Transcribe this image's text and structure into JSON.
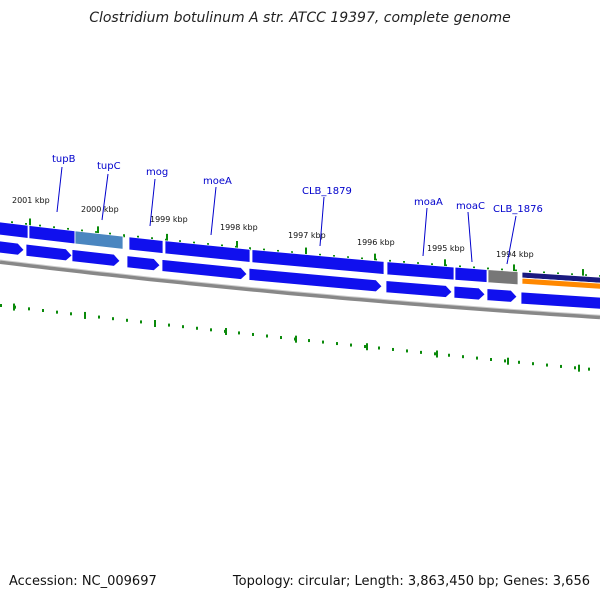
{
  "title": "Clostridium botulinum A str. ATCC 19397, complete genome",
  "footer": {
    "accession": "Accession: NC_009697",
    "summary": "Topology: circular; Length: 3,863,450 bp; Genes: 3,656"
  },
  "kbp_labels": [
    "2001 kbp",
    "2000 kbp",
    "1999 kbp",
    "1998 kbp",
    "1997 kbp",
    "1996 kbp",
    "1995 kbp",
    "1994 kbp"
  ],
  "gene_labels": [
    "tupB",
    "tupC",
    "mog",
    "moeA",
    "CLB_1879",
    "moaA",
    "moaC",
    "CLB_1876"
  ],
  "colors": {
    "gene_blue": "#1010ee",
    "selected_gene": "#4a86c0",
    "grey_gene": "#777777",
    "navy_gene": "#1a1a80",
    "orange_gene": "#ff8800",
    "tick_green": "#0a8a0a",
    "backbone_grey": "#888888",
    "label_blue": "#0000cc"
  }
}
